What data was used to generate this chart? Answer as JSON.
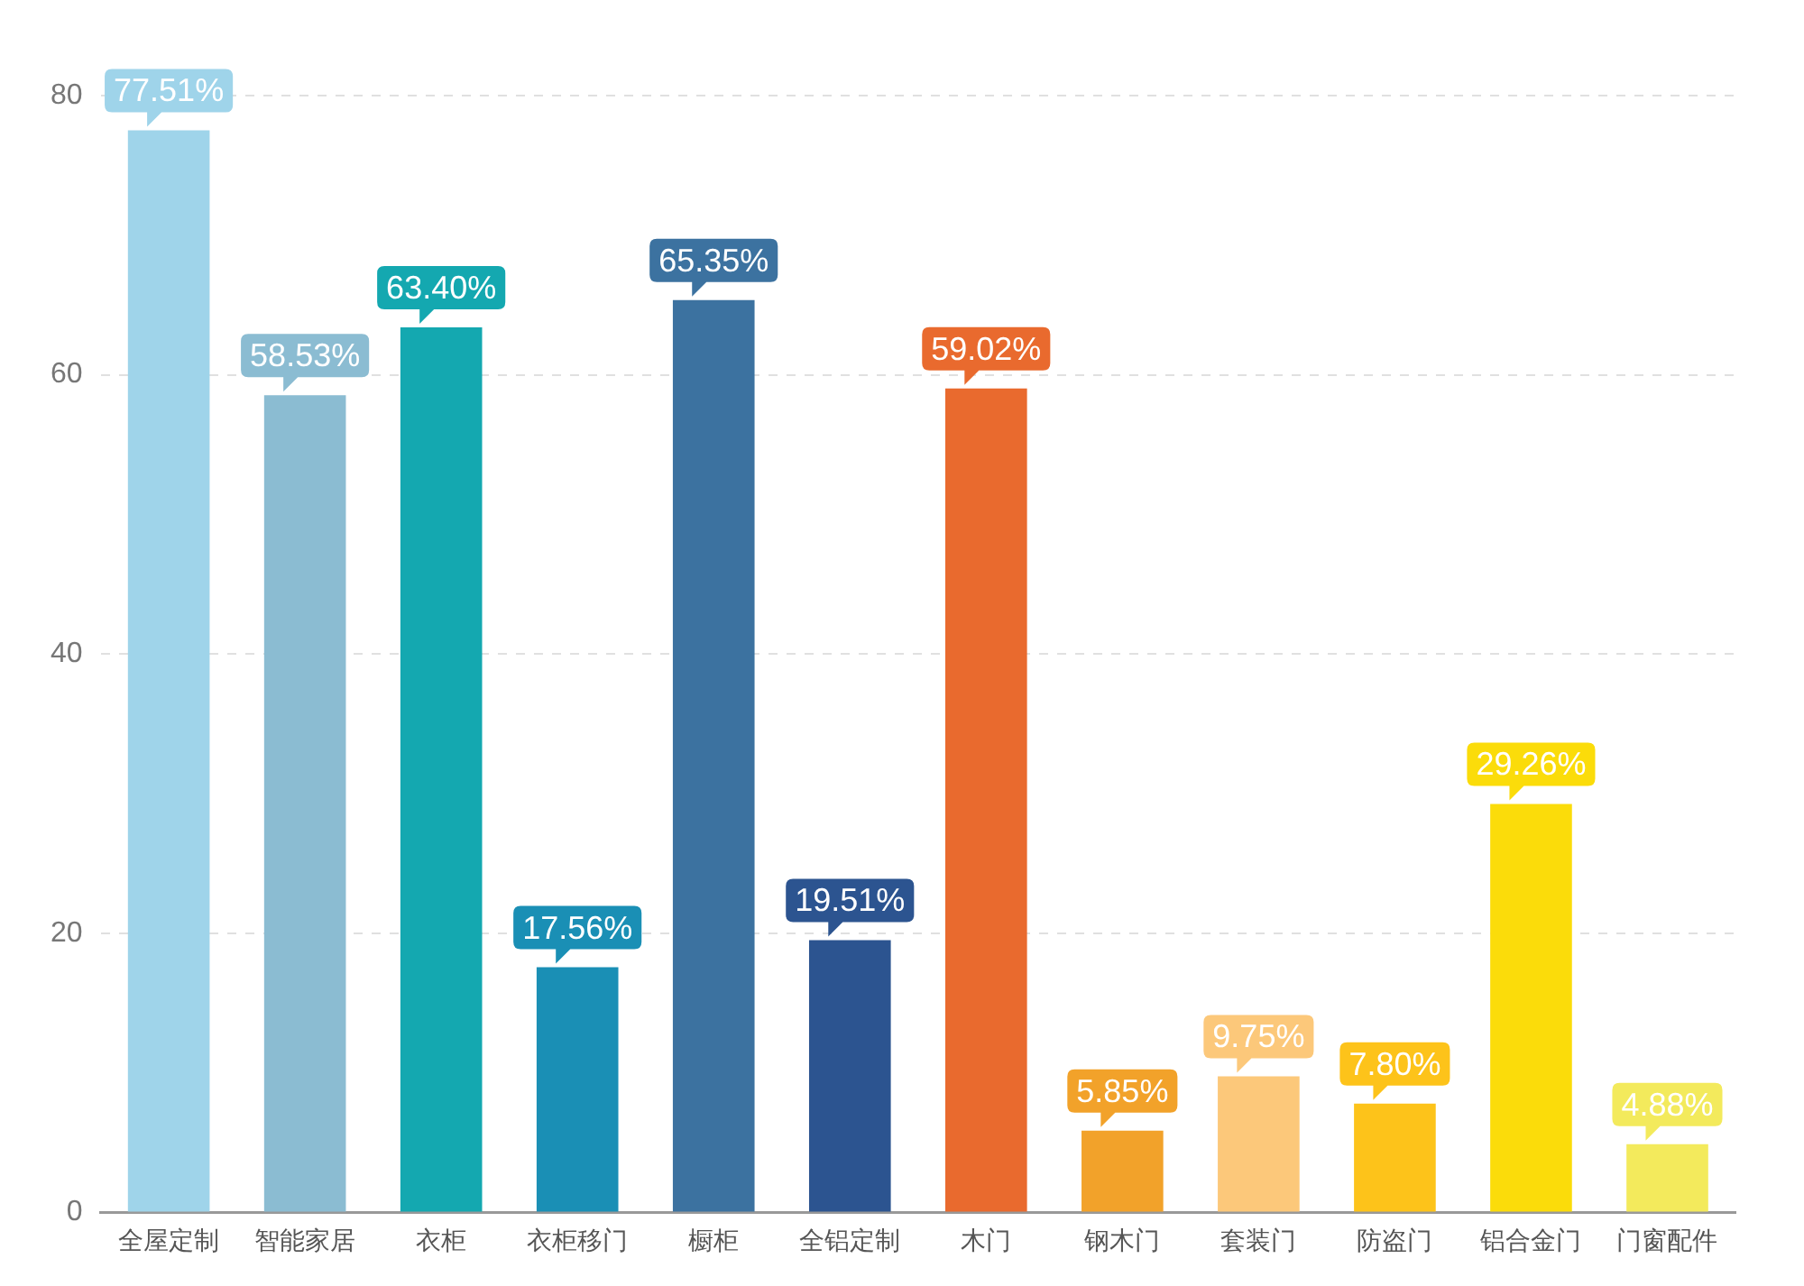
{
  "chart_data": {
    "type": "bar",
    "categories": [
      "全屋定制",
      "智能家居",
      "衣柜",
      "衣柜移门",
      "橱柜",
      "全铝定制",
      "木门",
      "钢木门",
      "套装门",
      "防盗门",
      "铝合金门",
      "门窗配件"
    ],
    "values": [
      77.51,
      58.53,
      63.4,
      17.56,
      65.35,
      19.51,
      59.02,
      5.85,
      9.75,
      7.8,
      29.26,
      4.88
    ],
    "value_labels": [
      "77.51%",
      "58.53%",
      "63.40%",
      "17.56%",
      "65.35%",
      "19.51%",
      "59.02%",
      "5.85%",
      "9.75%",
      "7.80%",
      "29.26%",
      "4.88%"
    ],
    "colors": [
      "#9fd4ea",
      "#8bbcd2",
      "#14a8b0",
      "#1a8fb5",
      "#3c72a0",
      "#2c5490",
      "#e96a2e",
      "#f2a22a",
      "#fcc87a",
      "#fdc31a",
      "#fbdc0a",
      "#f3ea5c"
    ],
    "ylim": [
      0,
      80
    ],
    "yticks": [
      0,
      20,
      40,
      60,
      80
    ],
    "grid": "y",
    "legend": false
  }
}
